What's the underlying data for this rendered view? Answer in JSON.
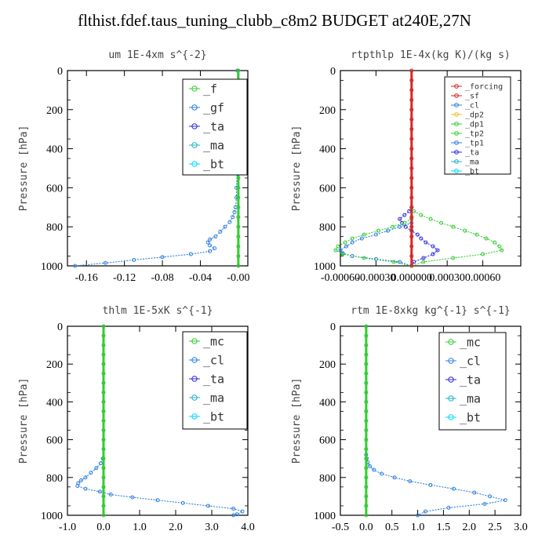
{
  "figure_title": "flthist.fdef.taus_tuning_clubb_c8m2  BUDGET at240E,27N",
  "colors": {
    "forcing": "#d62828",
    "sf": "#d62828",
    "cl": "#2e7fe0",
    "ta": "#2a2ae0",
    "ma": "#20b0c8",
    "bt": "#00d8ff",
    "f": "#33cc33",
    "gf": "#2e7fe0",
    "mc": "#33cc33",
    "dp2": "#e8c020",
    "dp1": "#33cc33",
    "tp2": "#33cc33",
    "tp1": "#2e7fe0"
  },
  "chart_data": [
    {
      "type": "line",
      "title": "um  1E-4xm s^{-2}",
      "ylabel": "Pressure [hPa]",
      "xlim": [
        -0.18,
        0.01
      ],
      "ylim": [
        1000,
        0
      ],
      "xticks": [
        -0.16,
        -0.12,
        -0.08,
        -0.04,
        0.0
      ],
      "xtick_labels": [
        "-0.16",
        "-0.12",
        "-0.08",
        "-0.04",
        "-0.00"
      ],
      "yticks": [
        0,
        200,
        400,
        600,
        800,
        1000
      ],
      "legend": [
        "_f",
        "_gf",
        "_ta",
        "_ma",
        "_bt"
      ],
      "legend_position": "top-right",
      "series": [
        {
          "name": "_gf",
          "color_key": "gf",
          "y": [
            0,
            100,
            200,
            300,
            400,
            500,
            600,
            650,
            700,
            725,
            750,
            775,
            800,
            825,
            850,
            865,
            880,
            895,
            910,
            925,
            940,
            955,
            970,
            985,
            1000
          ],
          "x": [
            -0.001,
            -0.001,
            -0.001,
            -0.001,
            -0.001,
            -0.001,
            -0.002,
            -0.002,
            -0.003,
            -0.004,
            -0.006,
            -0.009,
            -0.014,
            -0.019,
            -0.024,
            -0.03,
            -0.032,
            -0.03,
            -0.025,
            -0.03,
            -0.05,
            -0.08,
            -0.11,
            -0.14,
            -0.172
          ]
        },
        {
          "name": "_f",
          "color_key": "f",
          "y": [
            0,
            50,
            100,
            150,
            200,
            250,
            300,
            350,
            400,
            450,
            500,
            550,
            600,
            650,
            700,
            750,
            800,
            850,
            900,
            950,
            1000
          ],
          "x": [
            0,
            0,
            0,
            0,
            0,
            0,
            0,
            0,
            0,
            0,
            0,
            0,
            0,
            0,
            0,
            0,
            0,
            0,
            0,
            0,
            0
          ]
        }
      ]
    },
    {
      "type": "line",
      "title": "rtpthlp  1E-4x(kg K)/(kg s)",
      "ylabel": "Pressure [hPa]",
      "xlim": [
        -0.0006,
        0.00092
      ],
      "ylim": [
        1000,
        0
      ],
      "xticks": [
        -0.0006,
        -0.0003,
        0.0,
        0.0003,
        0.0006
      ],
      "xtick_labels": [
        "-0.00060",
        "-0.00030",
        "0.000000",
        "0.00030",
        "0.00060"
      ],
      "yticks": [
        0,
        200,
        400,
        600,
        800,
        1000
      ],
      "legend": [
        "_forcing",
        "_sf",
        "_cl",
        "_dp2",
        "_dp1",
        "_tp2",
        "_tp1",
        "_ta",
        "_ma",
        "_bt"
      ],
      "legend_position": "top-right",
      "series": [
        {
          "name": "_ta",
          "color_key": "ta",
          "y": [
            700,
            720,
            740,
            760,
            780,
            800,
            820,
            840,
            860,
            880,
            900,
            920,
            940,
            960,
            980,
            1000
          ],
          "x": [
            0,
            -2e-05,
            -6e-05,
            -0.0001,
            -8e-05,
            -5e-05,
            0,
            5e-05,
            8e-05,
            0.00012,
            0.00018,
            0.00022,
            0.00018,
            0.0001,
            2e-05,
            0
          ]
        },
        {
          "name": "_tp1",
          "color_key": "tp1",
          "y": [
            780,
            800,
            820,
            840,
            860,
            880,
            900,
            920,
            935,
            950,
            965,
            980,
            1000
          ],
          "x": [
            0,
            -0.0001,
            -0.0002,
            -0.0003,
            -0.00042,
            -0.0005,
            -0.00055,
            -0.0006,
            -0.00058,
            -0.0005,
            -0.0003,
            -0.0001,
            0
          ]
        },
        {
          "name": "_tp2",
          "color_key": "tp2",
          "y": [
            720,
            740,
            760,
            780,
            800,
            820,
            840,
            860,
            880,
            900,
            920,
            940,
            960,
            980,
            1000
          ],
          "x": [
            2e-05,
            8e-05,
            0.00016,
            0.00025,
            0.00035,
            0.00045,
            0.00055,
            0.00063,
            0.0007,
            0.00074,
            0.00076,
            0.0006,
            0.00035,
            0.0001,
            0
          ]
        },
        {
          "name": "_dp1",
          "color_key": "dp1",
          "y": [
            760,
            780,
            800,
            820,
            840,
            860,
            880,
            900,
            920,
            940,
            960,
            980,
            1000
          ],
          "x": [
            0,
            -6e-05,
            -0.00016,
            -0.00028,
            -0.0004,
            -0.0005,
            -0.00056,
            -0.00062,
            -0.00064,
            -0.00058,
            -0.0004,
            -0.00015,
            0
          ]
        },
        {
          "name": "_forcing",
          "color_key": "forcing",
          "y": [
            0,
            50,
            100,
            150,
            200,
            250,
            300,
            350,
            400,
            450,
            500,
            550,
            600,
            650,
            700,
            750,
            800,
            850,
            900,
            950,
            1000
          ],
          "x": [
            0,
            0,
            0,
            0,
            0,
            0,
            0,
            0,
            0,
            0,
            0,
            0,
            0,
            0,
            0,
            0,
            0,
            0,
            0,
            0,
            0
          ]
        }
      ]
    },
    {
      "type": "line",
      "title": "thlm  1E-5xK s^{-1}",
      "ylabel": "Pressure [hPa]",
      "xlim": [
        -1.0,
        4.0
      ],
      "ylim": [
        1000,
        0
      ],
      "xticks": [
        -1.0,
        0.0,
        1.0,
        2.0,
        3.0,
        4.0
      ],
      "xtick_labels": [
        "-1.0",
        "0.0",
        "1.0",
        "2.0",
        "3.0",
        "4.0"
      ],
      "yticks": [
        0,
        200,
        400,
        600,
        800,
        1000
      ],
      "legend": [
        "_mc",
        "_cl",
        "_ta",
        "_ma",
        "_bt"
      ],
      "legend_position": "top-right",
      "series": [
        {
          "name": "_cl",
          "color_key": "cl",
          "y": [
            700,
            725,
            750,
            775,
            800,
            815,
            830,
            845,
            860,
            875,
            890,
            905,
            920,
            935,
            950,
            965,
            980,
            995,
            1000
          ],
          "x": [
            -0.02,
            -0.08,
            -0.2,
            -0.35,
            -0.5,
            -0.62,
            -0.7,
            -0.72,
            -0.5,
            -0.1,
            0.2,
            0.8,
            1.5,
            2.2,
            2.9,
            3.6,
            3.85,
            3.7,
            3.6
          ]
        },
        {
          "name": "_mc",
          "color_key": "mc",
          "y": [
            0,
            50,
            100,
            150,
            200,
            250,
            300,
            350,
            400,
            450,
            500,
            550,
            600,
            650,
            700,
            750,
            800,
            850,
            900,
            950,
            1000
          ],
          "x": [
            0,
            0,
            0,
            0,
            0,
            0,
            0,
            0,
            0,
            0,
            0,
            0,
            0,
            0,
            0,
            0,
            0,
            0,
            0,
            0,
            0
          ]
        }
      ]
    },
    {
      "type": "line",
      "title": "rtm  1E-8xkg kg^{-1} s^{-1}",
      "ylabel": "Pressure [hPa]",
      "xlim": [
        -0.5,
        3.0
      ],
      "ylim": [
        1000,
        0
      ],
      "xticks": [
        -0.5,
        0.0,
        0.5,
        1.0,
        1.5,
        2.0,
        2.5,
        3.0
      ],
      "xtick_labels": [
        "-0.5",
        "0.0",
        "0.5",
        "1.0",
        "1.5",
        "2.0",
        "2.5",
        "3.0"
      ],
      "yticks": [
        0,
        200,
        400,
        600,
        800,
        1000
      ],
      "legend": [
        "_mc",
        "_cl",
        "_ta",
        "_ma",
        "_bt"
      ],
      "legend_position": "top-right",
      "series": [
        {
          "name": "_cl",
          "color_key": "cl",
          "y": [
            680,
            700,
            720,
            740,
            760,
            780,
            800,
            820,
            840,
            860,
            880,
            900,
            920,
            940,
            960,
            980,
            1000
          ],
          "x": [
            0,
            0.01,
            0.03,
            0.07,
            0.15,
            0.3,
            0.55,
            0.85,
            1.25,
            1.7,
            2.1,
            2.4,
            2.7,
            2.3,
            1.6,
            1.15,
            1.0
          ]
        },
        {
          "name": "_mc",
          "color_key": "mc",
          "y": [
            0,
            50,
            100,
            150,
            200,
            250,
            300,
            350,
            400,
            450,
            500,
            550,
            600,
            650,
            700,
            750,
            800,
            850,
            900,
            950,
            1000
          ],
          "x": [
            0,
            0,
            0,
            0,
            0,
            0,
            0,
            0,
            0,
            0,
            0,
            0,
            0,
            0,
            0,
            0,
            0,
            0,
            0,
            0,
            0
          ]
        }
      ]
    }
  ]
}
